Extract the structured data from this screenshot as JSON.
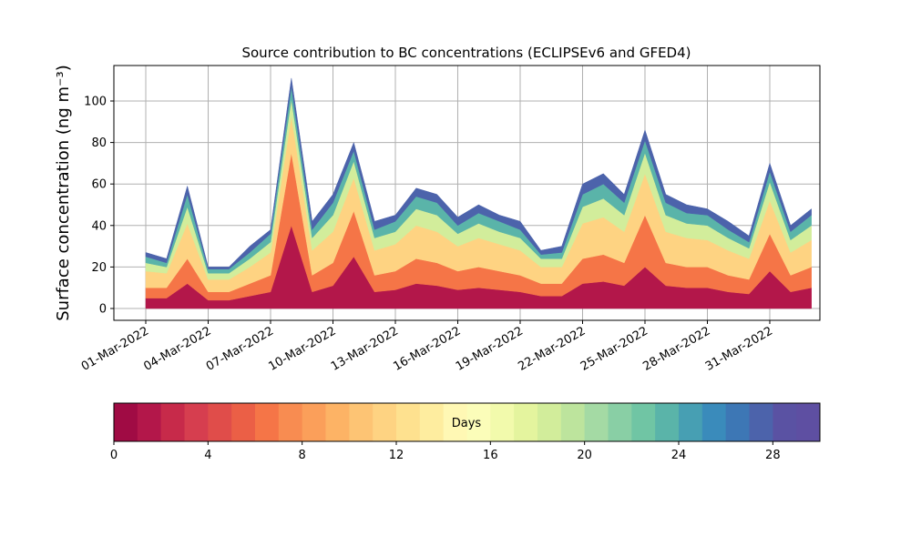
{
  "chart_data": {
    "type": "stacked_area",
    "title": "Source contribution to BC concentrations (ECLIPSEv6 and GFED4)",
    "y_label": "Surface concentration (ng m⁻³)",
    "x": [
      "2022-03-01",
      "2022-03-02",
      "2022-03-03",
      "2022-03-04",
      "2022-03-05",
      "2022-03-06",
      "2022-03-07",
      "2022-03-08",
      "2022-03-09",
      "2022-03-10",
      "2022-03-11",
      "2022-03-12",
      "2022-03-13",
      "2022-03-14",
      "2022-03-15",
      "2022-03-16",
      "2022-03-17",
      "2022-03-18",
      "2022-03-19",
      "2022-03-20",
      "2022-03-21",
      "2022-03-22",
      "2022-03-23",
      "2022-03-24",
      "2022-03-25",
      "2022-03-26",
      "2022-03-27",
      "2022-03-28",
      "2022-03-29",
      "2022-03-30",
      "2022-03-31",
      "2022-04-01",
      "2022-04-02"
    ],
    "series": [
      {
        "color": "#b3174a",
        "values": [
          5,
          5,
          12,
          4,
          4,
          6,
          8,
          40,
          8,
          11,
          25,
          8,
          9,
          12,
          11,
          9,
          10,
          9,
          8,
          6,
          6,
          12,
          13,
          11,
          20,
          11,
          10,
          10,
          8,
          7,
          18,
          8,
          10
        ]
      },
      {
        "color": "#f57547",
        "values": [
          5,
          5,
          12,
          4,
          4,
          6,
          8,
          35,
          8,
          11,
          22,
          8,
          9,
          12,
          11,
          9,
          10,
          9,
          8,
          6,
          6,
          12,
          13,
          11,
          25,
          11,
          10,
          10,
          8,
          7,
          18,
          8,
          10
        ]
      },
      {
        "color": "#fed382",
        "values": [
          8,
          7,
          17,
          6,
          6,
          8,
          11,
          18,
          12,
          15,
          16,
          12,
          13,
          16,
          15,
          12,
          14,
          13,
          12,
          8,
          8,
          17,
          18,
          15,
          20,
          15,
          14,
          13,
          12,
          10,
          16,
          11,
          13
        ]
      },
      {
        "color": "#d2ed9b",
        "values": [
          4,
          3,
          8,
          3,
          3,
          4,
          5,
          8,
          6,
          8,
          8,
          6,
          6,
          8,
          8,
          6,
          7,
          6,
          6,
          4,
          4,
          8,
          9,
          8,
          10,
          8,
          7,
          7,
          6,
          5,
          9,
          6,
          7
        ]
      },
      {
        "color": "#5ab4a9",
        "values": [
          3,
          2,
          6,
          2,
          2,
          3,
          4,
          6,
          4,
          6,
          5,
          4,
          5,
          6,
          6,
          4,
          5,
          5,
          4,
          2,
          3,
          6,
          7,
          6,
          6,
          6,
          5,
          5,
          4,
          3,
          5,
          4,
          5
        ]
      },
      {
        "color": "#4c63ab",
        "values": [
          2,
          2,
          4,
          1,
          1,
          3,
          2,
          4,
          4,
          4,
          4,
          4,
          3,
          4,
          4,
          4,
          4,
          3,
          4,
          2,
          3,
          5,
          5,
          4,
          5,
          4,
          4,
          3,
          4,
          3,
          4,
          3,
          3
        ]
      }
    ],
    "xlim": [
      "2022-02-27T11:12:00Z",
      "2022-04-02T09:50:00Z"
    ],
    "xticks": [
      {
        "value": "2022-03-01",
        "label": "01-Mar-2022"
      },
      {
        "value": "2022-03-04",
        "label": "04-Mar-2022"
      },
      {
        "value": "2022-03-07",
        "label": "07-Mar-2022"
      },
      {
        "value": "2022-03-10",
        "label": "10-Mar-2022"
      },
      {
        "value": "2022-03-13",
        "label": "13-Mar-2022"
      },
      {
        "value": "2022-03-16",
        "label": "16-Mar-2022"
      },
      {
        "value": "2022-03-19",
        "label": "19-Mar-2022"
      },
      {
        "value": "2022-03-22",
        "label": "22-Mar-2022"
      },
      {
        "value": "2022-03-25",
        "label": "25-Mar-2022"
      },
      {
        "value": "2022-03-28",
        "label": "28-Mar-2022"
      },
      {
        "value": "2022-03-31",
        "label": "31-Mar-2022"
      }
    ],
    "ylim": [
      -5.7,
      117.1
    ],
    "yticks": [
      0,
      20,
      40,
      60,
      80,
      100
    ],
    "grid": true,
    "colorbar": {
      "label": "Days",
      "lim": [
        0,
        30
      ],
      "ticks": [
        0,
        4,
        8,
        12,
        16,
        20,
        24,
        28
      ],
      "colors": [
        "#a00b44",
        "#b3174a",
        "#c72a4a",
        "#d63e4f",
        "#e04d4a",
        "#eb5f46",
        "#f57547",
        "#f88c51",
        "#fb9f5a",
        "#fdb365",
        "#fdc474",
        "#fed382",
        "#fee18f",
        "#feed9f",
        "#fff8b4",
        "#fbfdb9",
        "#f2faac",
        "#e4f49e",
        "#d2ed9b",
        "#bde49d",
        "#a4daa4",
        "#89cfa5",
        "#70c5a4",
        "#5ab4a9",
        "#479fb3",
        "#3a8bbb",
        "#3d77b5",
        "#4c63ab",
        "#5a52a3",
        "#5e4fa2"
      ]
    }
  }
}
